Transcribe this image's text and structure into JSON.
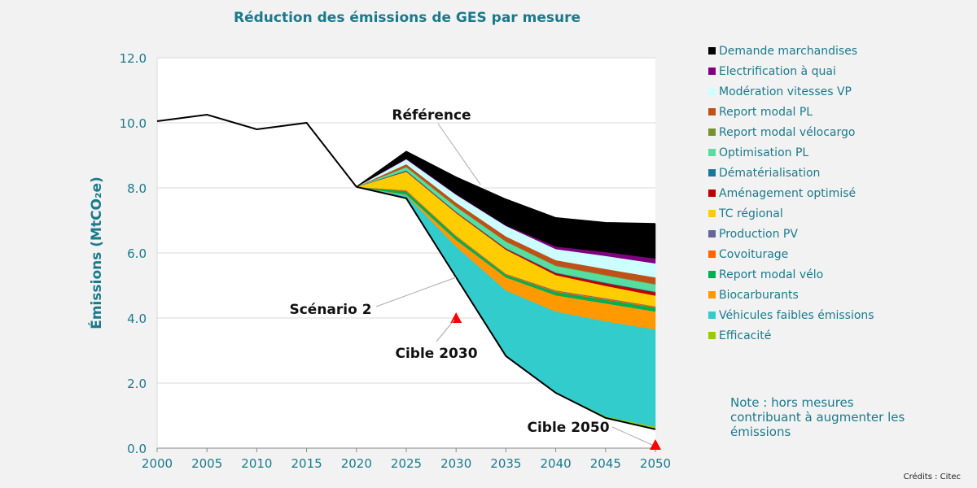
{
  "chart_data": {
    "type": "area",
    "title": "Réduction des émissions de GES par mesure",
    "ylabel": "Émissions (MtCO₂e)",
    "xlabel": "",
    "xlim": [
      2000,
      2050
    ],
    "ylim": [
      0,
      12
    ],
    "xticks": [
      "2000",
      "2005",
      "2010",
      "2015",
      "2020",
      "2025",
      "2030",
      "2035",
      "2040",
      "2045",
      "2050"
    ],
    "yticks": [
      "0.0",
      "2.0",
      "4.0",
      "6.0",
      "8.0",
      "10.0",
      "12.0"
    ],
    "grid": "horizontal",
    "legend_position": "right",
    "historical": {
      "x": [
        2000,
        2005,
        2010,
        2015,
        2020
      ],
      "y": [
        10.05,
        10.25,
        9.8,
        10.0,
        8.03
      ]
    },
    "x": [
      2020,
      2025,
      2030,
      2035,
      2040,
      2045,
      2050
    ],
    "scenario2": {
      "label": "Scénario 2",
      "values": [
        8.03,
        7.68,
        5.25,
        2.83,
        1.7,
        0.93,
        0.58
      ]
    },
    "reference_label": "Référence",
    "series": [
      {
        "name": "Efficacité",
        "color": "#99cc00",
        "values": [
          0,
          0,
          0,
          0,
          0.02,
          0.05,
          0.08
        ]
      },
      {
        "name": "Véhicules faibles émissions",
        "color": "#33cccc",
        "values": [
          0,
          0.1,
          0.95,
          2.02,
          2.48,
          2.92,
          2.99
        ]
      },
      {
        "name": "Biocarburants",
        "color": "#ff9900",
        "values": [
          0,
          0.02,
          0.2,
          0.4,
          0.5,
          0.55,
          0.55
        ]
      },
      {
        "name": "Report modal vélo",
        "color": "#00b050",
        "values": [
          0,
          0.1,
          0.1,
          0.08,
          0.1,
          0.11,
          0.12
        ]
      },
      {
        "name": "Covoiturage",
        "color": "#ff6600",
        "values": [
          0,
          0.03,
          0.02,
          0.02,
          0.03,
          0.03,
          0.03
        ]
      },
      {
        "name": "Production PV",
        "color": "#666699",
        "values": [
          0,
          0,
          0.01,
          0.01,
          0.02,
          0.02,
          0.01
        ]
      },
      {
        "name": "TC régional",
        "color": "#ffcc00",
        "values": [
          0,
          0.57,
          0.7,
          0.74,
          0.47,
          0.38,
          0.33
        ]
      },
      {
        "name": "Aménagement optimisé",
        "color": "#c00000",
        "values": [
          0,
          0.01,
          0.02,
          0.03,
          0.06,
          0.08,
          0.1
        ]
      },
      {
        "name": "Dématérialisation",
        "color": "#17799a",
        "values": [
          0,
          0.03,
          0.02,
          0.02,
          0.02,
          0.02,
          0.02
        ]
      },
      {
        "name": "Optimisation PL",
        "color": "#57dd9f",
        "values": [
          0,
          0.1,
          0.15,
          0.2,
          0.2,
          0.22,
          0.22
        ]
      },
      {
        "name": "Report modal vélocargo",
        "color": "#77922e",
        "values": [
          0,
          0.01,
          0.01,
          0.01,
          0.02,
          0.02,
          0.02
        ]
      },
      {
        "name": "Report modal PL",
        "color": "#c0501a",
        "values": [
          0,
          0.08,
          0.12,
          0.15,
          0.16,
          0.18,
          0.2
        ]
      },
      {
        "name": "Modération vitesses VP",
        "color": "#ccffff",
        "values": [
          0,
          0.15,
          0.24,
          0.32,
          0.34,
          0.4,
          0.43
        ]
      },
      {
        "name": "Electrification à quai",
        "color": "#800080",
        "values": [
          0,
          0.02,
          0.02,
          0.02,
          0.08,
          0.12,
          0.15
        ]
      },
      {
        "name": "Demande marchandises",
        "color": "#000000",
        "values": [
          0,
          0.22,
          0.52,
          0.8,
          0.88,
          0.9,
          1.07
        ]
      }
    ],
    "targets": [
      {
        "label": "Cible 2030",
        "x": 2030,
        "y": 4.0
      },
      {
        "label": "Cible 2050",
        "x": 2050,
        "y": 0.1
      }
    ],
    "target_color": "#ff0000"
  },
  "note": "Note : hors mesures contribuant à augmenter les émissions",
  "credits": "Crédits : Citec"
}
